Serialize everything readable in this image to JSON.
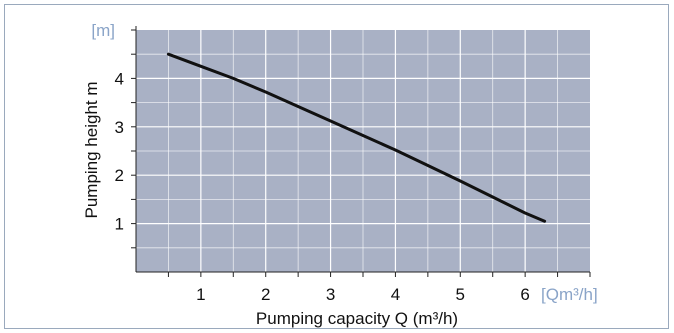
{
  "colors": {
    "plot_background": "#a9b1c5",
    "gridline": "#ffffff",
    "curve": "#111111",
    "unit_label": "#8aa4c8",
    "frame_border": "#9aa9bd"
  },
  "chart_data": {
    "type": "line",
    "xlabel": "Pumping capacity Q (m³/h)",
    "ylabel": "Pumping height m",
    "x_unit_label": "[Qm³/h]",
    "y_unit_label": "[m]",
    "xlim": [
      0,
      7
    ],
    "ylim": [
      0,
      5
    ],
    "x_ticks": [
      1,
      2,
      3,
      4,
      5,
      6
    ],
    "x_tick_labels": [
      "1",
      "2",
      "3",
      "4",
      "5",
      "6"
    ],
    "y_ticks": [
      1,
      2,
      3,
      4
    ],
    "y_tick_labels": [
      "1",
      "2",
      "3",
      "4"
    ],
    "grid": true,
    "series": [
      {
        "x": [
          0.5,
          1.0,
          1.5,
          2.0,
          2.5,
          3.0,
          3.5,
          4.0,
          4.5,
          5.0,
          5.5,
          6.0,
          6.3
        ],
        "y": [
          4.5,
          4.25,
          4.0,
          3.72,
          3.42,
          3.12,
          2.82,
          2.52,
          2.2,
          1.88,
          1.55,
          1.22,
          1.05
        ]
      }
    ]
  }
}
